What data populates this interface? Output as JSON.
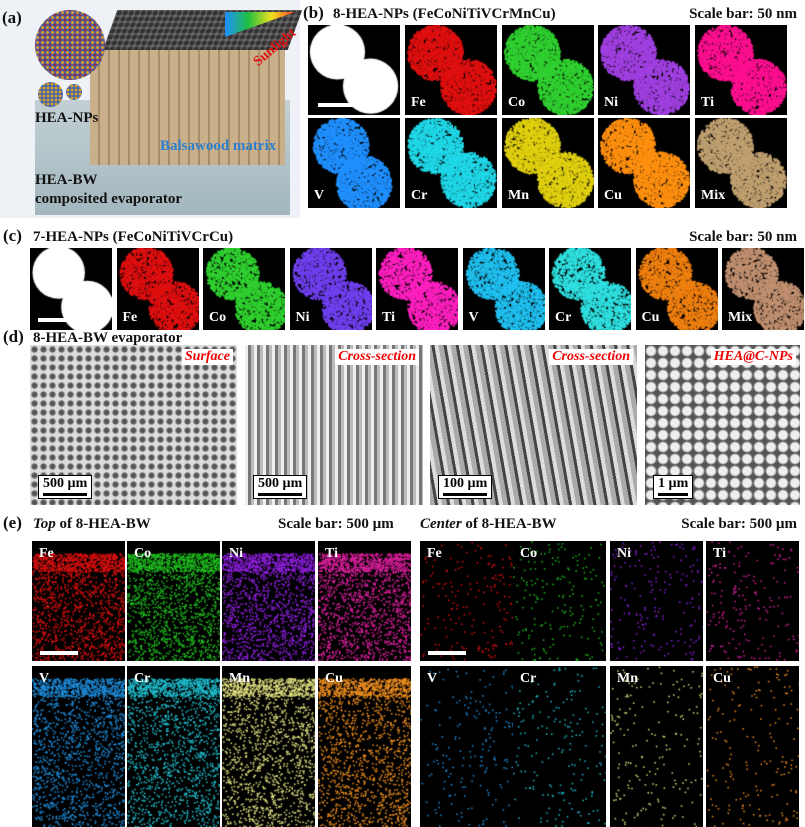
{
  "panel_a": {
    "label": "(a)",
    "np_label": "HEA-NPs",
    "matrix_label": "Balsawood matrix",
    "sunlight_label": "Sunlight",
    "evaporator_label": [
      "HEA-BW",
      "composited evaporator"
    ]
  },
  "panel_b": {
    "label": "(b)",
    "title": "8-HEA-NPs (FeCoNiTiVCrMnCu)",
    "scale": "Scale bar: 50 nm",
    "tiles": [
      {
        "label": "",
        "color": "#ffffff"
      },
      {
        "label": "Fe",
        "color": "#e01010"
      },
      {
        "label": "Co",
        "color": "#30d030"
      },
      {
        "label": "Ni",
        "color": "#a040e0"
      },
      {
        "label": "Ti",
        "color": "#ff1090"
      },
      {
        "label": "V",
        "color": "#2090ff"
      },
      {
        "label": "Cr",
        "color": "#20d8e8"
      },
      {
        "label": "Mn",
        "color": "#e0d010"
      },
      {
        "label": "Cu",
        "color": "#ff9010"
      },
      {
        "label": "Mix",
        "color": "#c0a070"
      }
    ]
  },
  "panel_c": {
    "label": "(c)",
    "title": "7-HEA-NPs (FeCoNiTiVCrCu)",
    "scale": "Scale bar: 50 nm",
    "tiles": [
      {
        "label": "",
        "color": "#ffffff"
      },
      {
        "label": "Fe",
        "color": "#e01010"
      },
      {
        "label": "Co",
        "color": "#30d030"
      },
      {
        "label": "Ni",
        "color": "#7040f0"
      },
      {
        "label": "Ti",
        "color": "#ff20c0"
      },
      {
        "label": "V",
        "color": "#20c0f0"
      },
      {
        "label": "Cr",
        "color": "#30e0e0"
      },
      {
        "label": "Cu",
        "color": "#f08010"
      },
      {
        "label": "Mix",
        "color": "#c09070"
      }
    ]
  },
  "panel_d": {
    "label": "(d)",
    "title": "8-HEA-BW evaporator",
    "images": [
      {
        "tag": "Surface",
        "scale": "500 µm"
      },
      {
        "tag": "Cross-section",
        "scale": "500 µm"
      },
      {
        "tag": "Cross-section",
        "scale": "100 µm"
      },
      {
        "tag": "HEA@C-NPs",
        "scale": "1 µm"
      }
    ]
  },
  "panel_e": {
    "label": "(e)",
    "left": {
      "title_em": "Top",
      "title_rest": " of 8-HEA-BW",
      "scale": "Scale bar: 500 µm"
    },
    "right": {
      "title_em": "Center",
      "title_rest": " of 8-HEA-BW",
      "scale": "Scale bar: 500 µm"
    },
    "elements": [
      {
        "label": "Fe",
        "color": "#e01010"
      },
      {
        "label": "Co",
        "color": "#20c020"
      },
      {
        "label": "Ni",
        "color": "#9020e0"
      },
      {
        "label": "Ti",
        "color": "#e020a0"
      },
      {
        "label": "V",
        "color": "#2090e0"
      },
      {
        "label": "Cr",
        "color": "#20c0d0"
      },
      {
        "label": "Mn",
        "color": "#e0e080"
      },
      {
        "label": "Cu",
        "color": "#f09020"
      }
    ]
  }
}
